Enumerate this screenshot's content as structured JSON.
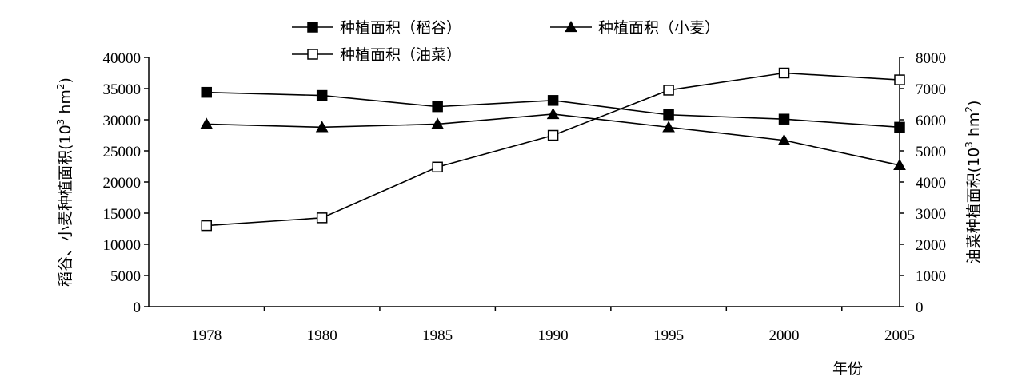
{
  "chart_data": {
    "type": "line",
    "categories": [
      "1978",
      "1980",
      "1985",
      "1990",
      "1995",
      "2000",
      "2005"
    ],
    "x_axis_label": "年份",
    "y_left": {
      "label_main": "稻谷、小麦种植面积(10",
      "label_sup": "3",
      "label_unit": " hm",
      "label_sup2": "2",
      "label_close": ")",
      "range": [
        0,
        40000
      ],
      "ticks": [
        "0",
        "5000",
        "10000",
        "15000",
        "20000",
        "25000",
        "30000",
        "35000",
        "40000"
      ]
    },
    "y_right": {
      "label_main": "油菜种植面积(10",
      "label_sup": "3",
      "label_unit": " hm",
      "label_sup2": "2",
      "label_close": ")",
      "range": [
        0,
        8000
      ],
      "ticks": [
        "0",
        "1000",
        "2000",
        "3000",
        "4000",
        "5000",
        "6000",
        "7000",
        "8000"
      ]
    },
    "series": [
      {
        "name": "种植面积（稻谷）",
        "axis": "left",
        "marker": "square-filled",
        "values": [
          34400,
          33900,
          32100,
          33100,
          30800,
          30100,
          28800
        ]
      },
      {
        "name": "种植面积（小麦）",
        "axis": "left",
        "marker": "triangle-filled",
        "values": [
          29300,
          28800,
          29300,
          30900,
          28800,
          26700,
          22700
        ]
      },
      {
        "name": "种植面积（油菜）",
        "axis": "right",
        "marker": "square-open",
        "values": [
          2600,
          2850,
          4480,
          5500,
          6950,
          7500,
          7280
        ]
      }
    ],
    "legend_position": "top",
    "grid": false
  }
}
